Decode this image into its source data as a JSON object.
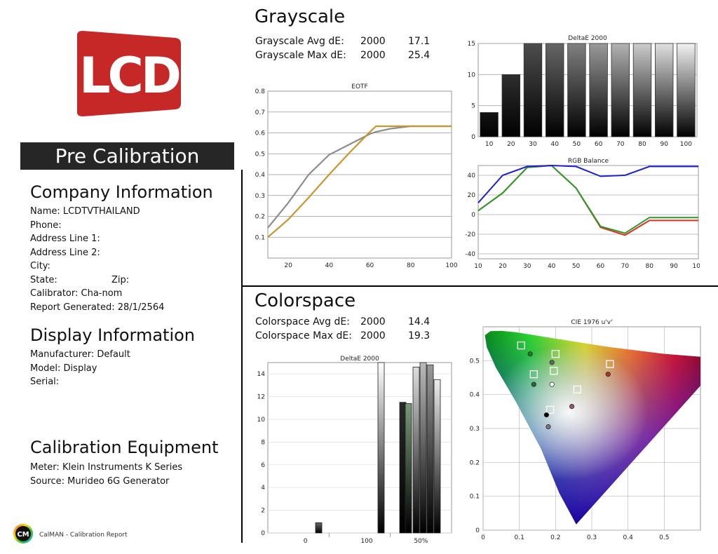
{
  "logo": {
    "text": "LCD",
    "color": "#c62828"
  },
  "left": {
    "banner": "Pre Calibration",
    "company": {
      "heading": "Company Information",
      "lines": [
        "Name: LCDTVTHAILAND",
        "Phone:",
        "Address Line 1:",
        "Address Line 2:",
        "City:",
        "State:",
        "Calibrator: Cha-nom",
        "Report Generated: 28/1/2564"
      ],
      "zip": "Zip:"
    },
    "display": {
      "heading": "Display Information",
      "lines": [
        "Manufacturer: Default",
        "Model: Display",
        "Serial:"
      ]
    },
    "equipment": {
      "heading": "Calibration Equipment",
      "lines": [
        "Meter: Klein Instruments K Series",
        "Source: Murideo 6G Generator"
      ]
    },
    "footer": {
      "badge": "CM",
      "text": "CalMAN - Calibration Report"
    }
  },
  "grayscale": {
    "heading": "Grayscale",
    "stats": [
      {
        "label": "Grayscale Avg dE:",
        "formula": "2000",
        "value": "17.1"
      },
      {
        "label": "Grayscale Max dE:",
        "formula": "2000",
        "value": "25.4"
      }
    ]
  },
  "colorspace": {
    "heading": "Colorspace",
    "stats": [
      {
        "label": "Colorspace Avg dE:",
        "formula": "2000",
        "value": "14.4"
      },
      {
        "label": "Colorspace Max dE:",
        "formula": "2000",
        "value": "19.3"
      }
    ]
  },
  "chart_data": [
    {
      "id": "eotf",
      "type": "line",
      "title": "EOTF",
      "x": [
        10,
        20,
        30,
        40,
        50,
        60,
        63,
        70,
        80,
        90,
        100
      ],
      "xticks": [
        20,
        40,
        60,
        80,
        100
      ],
      "yticks": [
        0.1,
        0.2,
        0.3,
        0.4,
        0.5,
        0.6,
        0.7,
        0.8
      ],
      "xlim": [
        10,
        100
      ],
      "ylim": [
        0,
        0.8
      ],
      "series": [
        {
          "color": "#8c8c8c",
          "values": [
            0.145,
            0.265,
            0.4,
            0.495,
            0.545,
            0.595,
            0.605,
            0.62,
            0.632,
            0.632,
            0.632
          ]
        },
        {
          "color": "#c8962e",
          "values": [
            0.1,
            0.185,
            0.29,
            0.4,
            0.505,
            0.605,
            0.632,
            0.632,
            0.632,
            0.632,
            0.632
          ]
        }
      ]
    },
    {
      "id": "de-gray",
      "type": "bar",
      "title": "DeltaE 2000",
      "categories": [
        "10",
        "20",
        "30",
        "40",
        "50",
        "60",
        "70",
        "80",
        "90",
        "100"
      ],
      "values": [
        3.9,
        10,
        15,
        15,
        15,
        15,
        15,
        15,
        15,
        15
      ],
      "ylim": [
        0,
        15
      ],
      "yticks": [
        0,
        5,
        10,
        15
      ],
      "grays": [
        0.08,
        0.18,
        0.3,
        0.4,
        0.5,
        0.6,
        0.7,
        0.8,
        0.88,
        0.95
      ]
    },
    {
      "id": "rgb",
      "type": "line",
      "title": "RGB Balance",
      "x": [
        10,
        20,
        30,
        40,
        50,
        60,
        70,
        80,
        90,
        100
      ],
      "xticks": [
        10,
        20,
        30,
        40,
        50,
        60,
        70,
        80,
        90,
        100
      ],
      "yticks": [
        -40,
        -20,
        0,
        20,
        40
      ],
      "xlim": [
        10,
        100
      ],
      "ylim": [
        -45,
        50
      ],
      "series": [
        {
          "color": "#e03020",
          "values": [
            4,
            22,
            48,
            50,
            27,
            -13,
            -21,
            -6,
            -6,
            -6
          ]
        },
        {
          "color": "#2a9a2a",
          "values": [
            4,
            22,
            48,
            50,
            27,
            -12,
            -19,
            -3,
            -3,
            -3
          ]
        },
        {
          "color": "#2020d0",
          "values": [
            12,
            40,
            49,
            50,
            49,
            39,
            40,
            49,
            49,
            49
          ]
        }
      ]
    },
    {
      "id": "de-color",
      "type": "bar",
      "title": "DeltaE 2000",
      "xticks": [
        "0",
        "100",
        "50%"
      ],
      "yticks": [
        0,
        2,
        4,
        6,
        8,
        10,
        12,
        14
      ],
      "ylim": [
        0,
        15
      ],
      "values": [
        0.9,
        15,
        11.5,
        11.4,
        14.6,
        15,
        14.8,
        13.5
      ]
    },
    {
      "id": "cie",
      "type": "scatter",
      "title": "CIE 1976 u'v'",
      "xticks": [
        0,
        0.1,
        0.2,
        0.3,
        0.4,
        0.5
      ],
      "yticks": [
        0,
        0.1,
        0.2,
        0.3,
        0.4,
        0.5
      ],
      "xlim": [
        0,
        0.6
      ],
      "ylim": [
        0,
        0.6
      ],
      "targets": [
        [
          0.105,
          0.545
        ],
        [
          0.2,
          0.52
        ],
        [
          0.35,
          0.49
        ],
        [
          0.14,
          0.46
        ],
        [
          0.195,
          0.47
        ],
        [
          0.26,
          0.415
        ],
        [
          0.185,
          0.355
        ]
      ],
      "measured": [
        [
          0.13,
          0.52
        ],
        [
          0.19,
          0.495
        ],
        [
          0.345,
          0.46
        ],
        [
          0.14,
          0.43
        ],
        [
          0.19,
          0.43
        ],
        [
          0.245,
          0.365
        ],
        [
          0.175,
          0.34
        ],
        [
          0.18,
          0.305
        ]
      ]
    }
  ]
}
